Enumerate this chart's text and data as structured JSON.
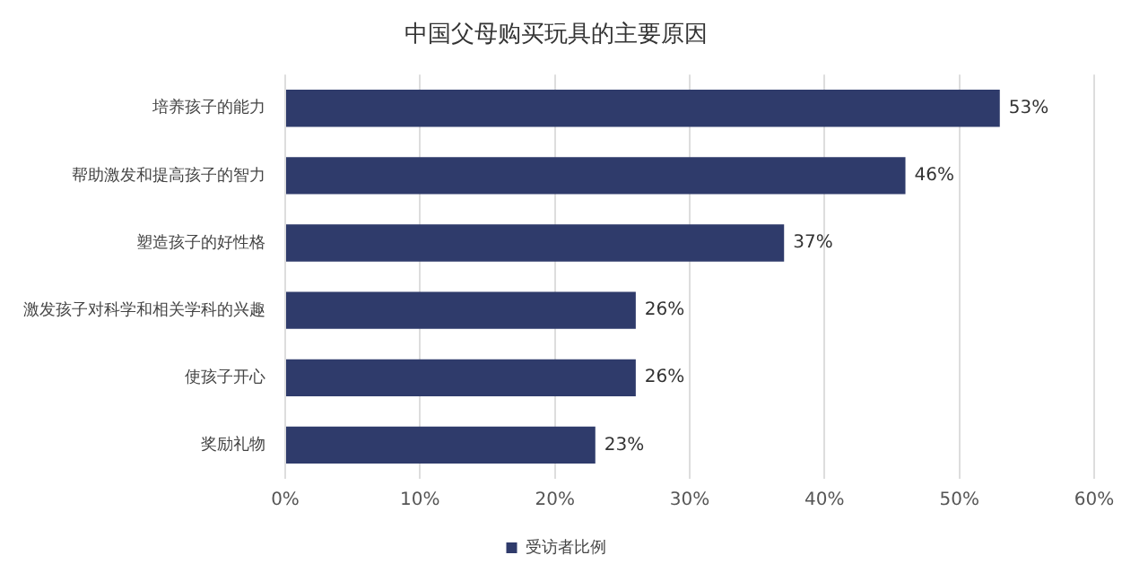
{
  "chart_data": {
    "type": "bar",
    "orientation": "horizontal",
    "title": "中国父母购买玩具的主要原因",
    "categories": [
      "培养孩子的能力",
      "帮助激发和提高孩子的智力",
      "塑造孩子的好性格",
      "激发孩子对科学和相关学科的兴趣",
      "使孩子开心",
      "奖励礼物"
    ],
    "series": [
      {
        "name": "受访者比例",
        "color": "#2f3b6b",
        "values": [
          53,
          46,
          37,
          26,
          26,
          23
        ],
        "value_labels": [
          "53%",
          "46%",
          "37%",
          "26%",
          "26%",
          "23%"
        ]
      }
    ],
    "xlim": [
      0,
      60
    ],
    "xticks": [
      {
        "value": 0,
        "label": "0%"
      },
      {
        "value": 10,
        "label": "10%"
      },
      {
        "value": 20,
        "label": "20%"
      },
      {
        "value": 30,
        "label": "30%"
      },
      {
        "value": 40,
        "label": "40%"
      },
      {
        "value": 50,
        "label": "50%"
      },
      {
        "value": 60,
        "label": "60%"
      }
    ],
    "grid": "x",
    "legend": "bottom"
  }
}
